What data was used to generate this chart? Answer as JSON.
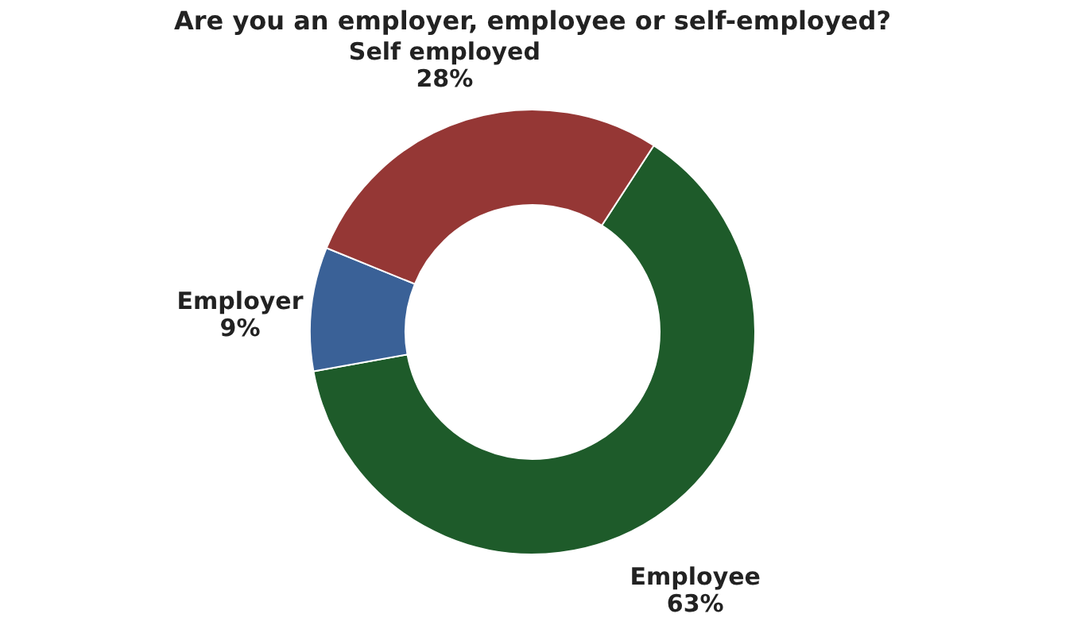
{
  "chart_data": {
    "type": "donut",
    "title": "Are you an employer, employee or self-employed?",
    "categories": [
      "Employee",
      "Employer",
      "Self employed"
    ],
    "values": [
      63,
      9,
      28
    ],
    "value_labels": [
      "63%",
      "9%",
      "28%"
    ],
    "colors": [
      "#1e5b2a",
      "#3a6197",
      "#953735"
    ],
    "legend": false
  }
}
